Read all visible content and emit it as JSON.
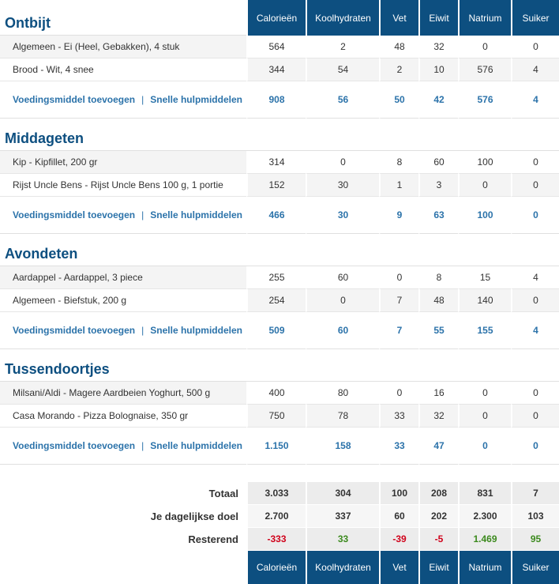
{
  "columns": [
    "Calorieën",
    "Koolhydraten",
    "Vet",
    "Eiwit",
    "Natrium",
    "Suiker"
  ],
  "links": {
    "add": "Voedingsmiddel toevoegen",
    "sep": "|",
    "quick": "Snelle hulpmiddelen"
  },
  "meals": [
    {
      "name": "Ontbijt",
      "items": [
        {
          "name": "Algemeen - Ei (Heel, Gebakken), 4 stuk",
          "values": [
            "564",
            "2",
            "48",
            "32",
            "0",
            "0"
          ]
        },
        {
          "name": "Brood - Wit, 4 snee",
          "values": [
            "344",
            "54",
            "2",
            "10",
            "576",
            "4"
          ]
        }
      ],
      "totals": [
        "908",
        "56",
        "50",
        "42",
        "576",
        "4"
      ]
    },
    {
      "name": "Middageten",
      "items": [
        {
          "name": "Kip - Kipfillet, 200 gr",
          "values": [
            "314",
            "0",
            "8",
            "60",
            "100",
            "0"
          ]
        },
        {
          "name": "Rijst Uncle Bens - Rijst Uncle Bens 100 g, 1 portie",
          "values": [
            "152",
            "30",
            "1",
            "3",
            "0",
            "0"
          ]
        }
      ],
      "totals": [
        "466",
        "30",
        "9",
        "63",
        "100",
        "0"
      ]
    },
    {
      "name": "Avondeten",
      "items": [
        {
          "name": "Aardappel - Aardappel, 3 piece",
          "values": [
            "255",
            "60",
            "0",
            "8",
            "15",
            "4"
          ]
        },
        {
          "name": "Algemeen - Biefstuk, 200 g",
          "values": [
            "254",
            "0",
            "7",
            "48",
            "140",
            "0"
          ]
        }
      ],
      "totals": [
        "509",
        "60",
        "7",
        "55",
        "155",
        "4"
      ]
    },
    {
      "name": "Tussendoortjes",
      "items": [
        {
          "name": "Milsani/Aldi - Magere Aardbeien Yoghurt, 500 g",
          "values": [
            "400",
            "80",
            "0",
            "16",
            "0",
            "0"
          ]
        },
        {
          "name": "Casa Morando - Pizza Bolognaise, 350 gr",
          "values": [
            "750",
            "78",
            "33",
            "32",
            "0",
            "0"
          ]
        }
      ],
      "totals": [
        "1.150",
        "158",
        "33",
        "47",
        "0",
        "0"
      ]
    }
  ],
  "summary": {
    "total": {
      "label": "Totaal",
      "values": [
        "3.033",
        "304",
        "100",
        "208",
        "831",
        "7"
      ]
    },
    "goal": {
      "label": "Je dagelijkse doel",
      "values": [
        "2.700",
        "337",
        "60",
        "202",
        "2.300",
        "103"
      ]
    },
    "remaining": {
      "label": "Resterend",
      "values": [
        "-333",
        "33",
        "-39",
        "-5",
        "1.469",
        "95"
      ]
    }
  },
  "colors": {
    "header_bg": "#0d4f80",
    "link": "#2c73aa",
    "negative": "#d0021b",
    "positive": "#3c8a1e"
  }
}
